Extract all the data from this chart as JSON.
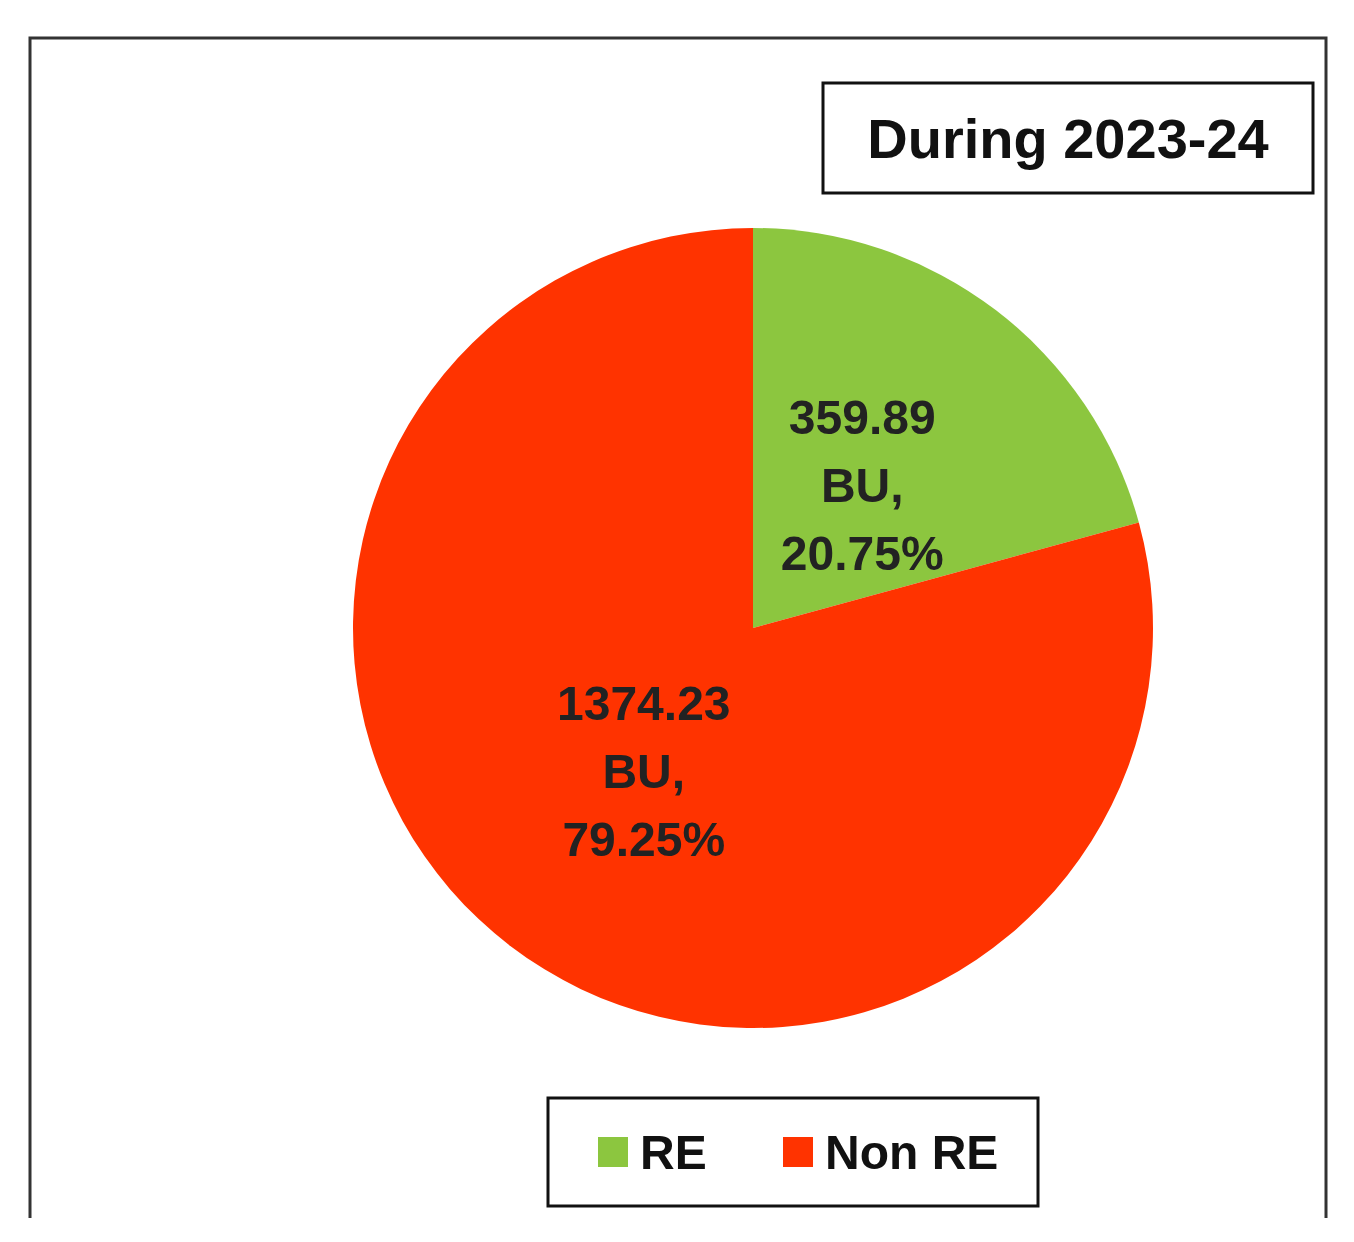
{
  "chart_data": {
    "type": "pie",
    "title": "During 2023-24",
    "categories": [
      "RE",
      "Non RE"
    ],
    "values": [
      359.89,
      1374.23
    ],
    "colors": [
      "#8cc63f",
      "#ff3300"
    ],
    "value_labels": [
      "359.89 BU, 20.75%",
      "1374.23 BU, 79.25%"
    ],
    "legend": "bottom"
  }
}
